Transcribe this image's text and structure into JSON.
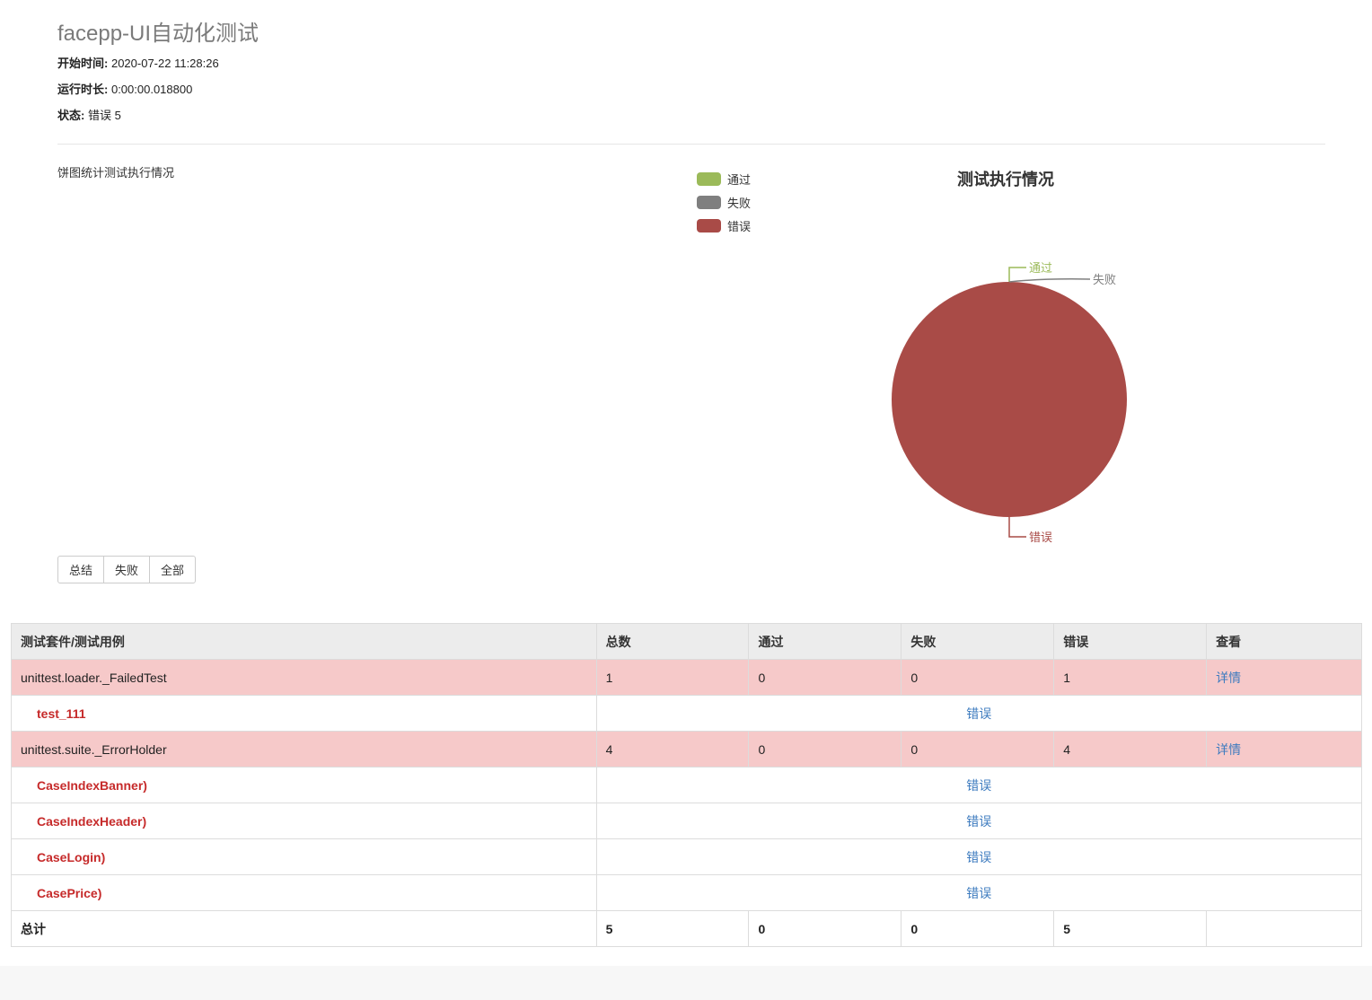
{
  "header": {
    "title": "facepp-UI自动化测试",
    "start_label": "开始时间:",
    "start_value": "2020-07-22 11:28:26",
    "duration_label": "运行时长:",
    "duration_value": "0:00:00.018800",
    "status_label": "状态:",
    "status_value": "错误 5"
  },
  "pie_description": "饼图统计测试执行情况",
  "colors": {
    "pass": "#9bba59",
    "fail": "#7f7f7f",
    "error": "#a94b47",
    "case_error_text": "#c62a2a",
    "link": "#3d7bbf"
  },
  "legend": [
    {
      "label": "通过",
      "color": "#9bba59"
    },
    {
      "label": "失败",
      "color": "#7f7f7f"
    },
    {
      "label": "错误",
      "color": "#a94b47"
    }
  ],
  "chart_data": {
    "type": "pie",
    "title": "测试执行情况",
    "categories": [
      "通过",
      "失败",
      "错误"
    ],
    "values": [
      0,
      0,
      5
    ],
    "colors": [
      "#9bba59",
      "#7f7f7f",
      "#a94b47"
    ],
    "legend": "top-left"
  },
  "filters": [
    "总结",
    "失败",
    "全部"
  ],
  "table": {
    "headers": [
      "测试套件/测试用例",
      "总数",
      "通过",
      "失败",
      "错误",
      "查看"
    ],
    "suite1": {
      "name": "unittest.loader._FailedTest",
      "total": "1",
      "pass": "0",
      "fail": "0",
      "error": "1",
      "view": "详情"
    },
    "suite1_cases": [
      {
        "name": "test_111",
        "result": "错误"
      }
    ],
    "suite2": {
      "name": "unittest.suite._ErrorHolder",
      "total": "4",
      "pass": "0",
      "fail": "0",
      "error": "4",
      "view": "详情"
    },
    "suite2_cases": [
      {
        "name": "CaseIndexBanner)",
        "result": "错误"
      },
      {
        "name": "CaseIndexHeader)",
        "result": "错误"
      },
      {
        "name": "CaseLogin)",
        "result": "错误"
      },
      {
        "name": "CasePrice)",
        "result": "错误"
      }
    ],
    "total": {
      "label": "总计",
      "total": "5",
      "pass": "0",
      "fail": "0",
      "error": "5"
    }
  }
}
